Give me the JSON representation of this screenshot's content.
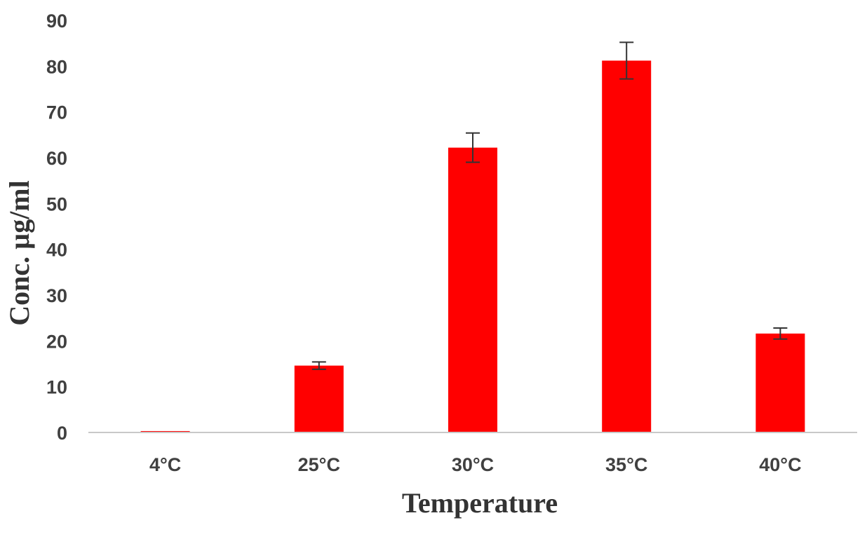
{
  "chart_data": {
    "type": "bar",
    "title": "",
    "xlabel": "Temperature",
    "ylabel": "Conc. µg/ml",
    "categories": [
      "4°C",
      "25°C",
      "30°C",
      "35°C",
      "40°C"
    ],
    "values": [
      0.3,
      14.6,
      62.2,
      81.2,
      21.6
    ],
    "error": [
      0,
      0.8,
      3.2,
      4.0,
      1.2
    ],
    "ylim": [
      0,
      90
    ],
    "yticks": [
      0,
      10,
      20,
      30,
      40,
      50,
      60,
      70,
      80,
      90
    ],
    "grid": false,
    "bar_color": "#ff0000",
    "errorbar_color": "#333333",
    "axis_color": "#c8c8c8"
  }
}
